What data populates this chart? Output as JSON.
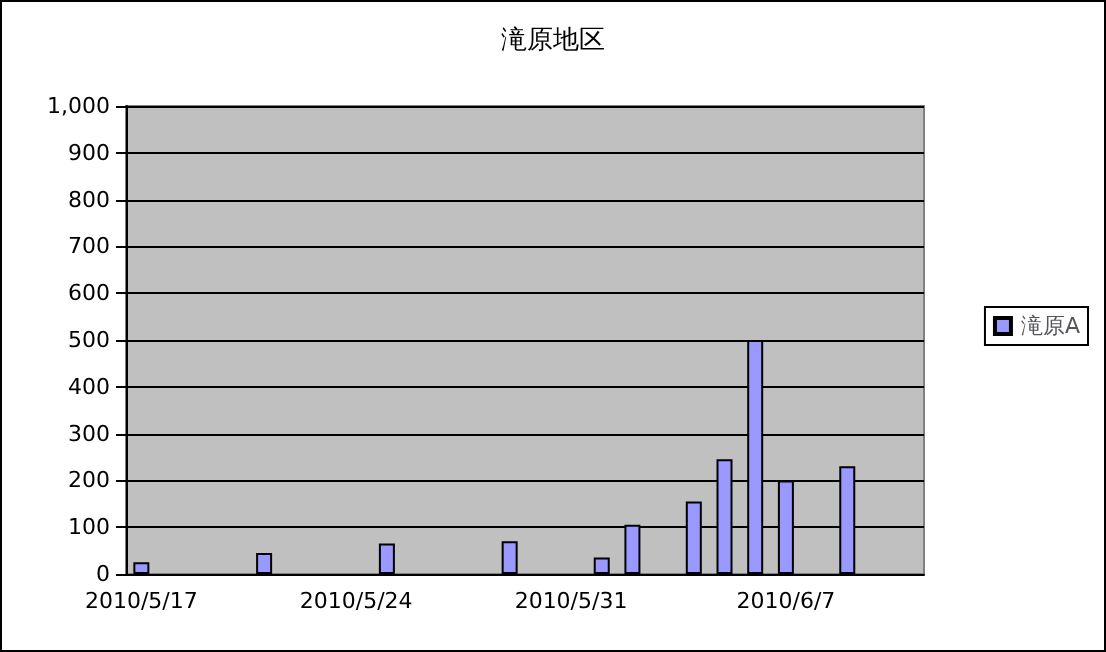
{
  "chart_data": {
    "type": "bar",
    "title": "滝原地区",
    "categories": [
      "2010/5/17",
      null,
      null,
      null,
      null,
      null,
      null,
      "2010/5/24",
      null,
      null,
      null,
      null,
      null,
      null,
      "2010/5/31",
      null,
      null,
      null,
      null,
      null,
      null,
      "2010/6/7",
      null,
      null,
      null,
      null
    ],
    "series": [
      {
        "name": "滝原A",
        "color": "#9999ff",
        "values": [
          25,
          null,
          null,
          null,
          45,
          null,
          null,
          null,
          65,
          null,
          null,
          null,
          70,
          null,
          null,
          35,
          105,
          null,
          155,
          245,
          500,
          200,
          null,
          230,
          null,
          null
        ]
      }
    ],
    "ylim": [
      0,
      1000
    ],
    "yticks": [
      0,
      100,
      200,
      300,
      400,
      500,
      600,
      700,
      800,
      900,
      {
        "value": 1000,
        "label": "1,000"
      }
    ],
    "grid": "y",
    "legend": "right"
  }
}
